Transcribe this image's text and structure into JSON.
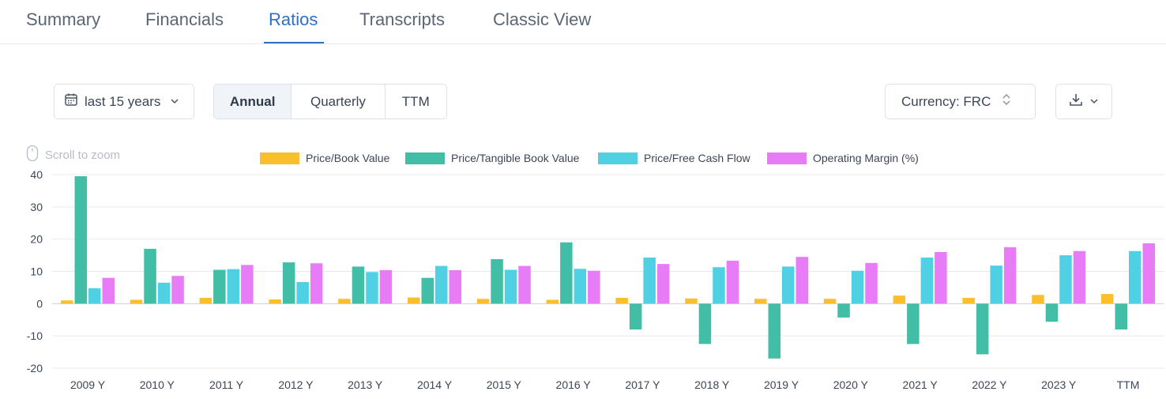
{
  "tabs": [
    {
      "label": "Summary",
      "active": false
    },
    {
      "label": "Financials",
      "active": false
    },
    {
      "label": "Ratios",
      "active": true
    },
    {
      "label": "Transcripts",
      "active": false
    },
    {
      "label": "Classic View",
      "active": false
    }
  ],
  "controls": {
    "period_label": "last 15 years",
    "period_icon": "calendar-icon",
    "frequency_options": [
      "Annual",
      "Quarterly",
      "TTM"
    ],
    "frequency_selected": "Annual",
    "currency_label": "Currency: FRC",
    "download_icon": "download-icon"
  },
  "zoom_hint": "Scroll to zoom",
  "colors": {
    "accent": "#2f6fc6",
    "price_book": "#fbbf2e",
    "price_tangible_book": "#43bea6",
    "price_fcf": "#4fd1e3",
    "operating_margin": "#e87cf6"
  },
  "chart_data": {
    "type": "bar",
    "categories": [
      "2009 Y",
      "2010 Y",
      "2011 Y",
      "2012 Y",
      "2013 Y",
      "2014 Y",
      "2015 Y",
      "2016 Y",
      "2017 Y",
      "2018 Y",
      "2019 Y",
      "2020 Y",
      "2021 Y",
      "2022 Y",
      "2023 Y",
      "TTM"
    ],
    "series": [
      {
        "name": "Price/Book Value",
        "color": "#fbbf2e",
        "values": [
          1.0,
          1.2,
          1.8,
          1.3,
          1.5,
          1.9,
          1.5,
          1.2,
          1.8,
          1.6,
          1.5,
          1.5,
          2.5,
          1.8,
          2.7,
          3.0
        ]
      },
      {
        "name": "Price/Tangible Book Value",
        "color": "#43bea6",
        "values": [
          39.5,
          17.0,
          10.5,
          12.8,
          11.5,
          8.0,
          13.8,
          19.0,
          -8.0,
          -12.5,
          -17.0,
          -4.3,
          -12.5,
          -15.7,
          -5.6,
          -8.0
        ]
      },
      {
        "name": "Price/Free Cash Flow",
        "color": "#4fd1e3",
        "values": [
          4.8,
          6.5,
          10.7,
          6.7,
          9.8,
          11.7,
          10.5,
          10.8,
          14.3,
          11.3,
          11.5,
          10.2,
          14.3,
          11.8,
          15.0,
          16.3
        ]
      },
      {
        "name": "Operating Margin (%)",
        "color": "#e87cf6",
        "values": [
          8.0,
          8.6,
          12.0,
          12.5,
          10.4,
          10.4,
          11.7,
          10.2,
          12.3,
          13.3,
          14.5,
          12.6,
          16.0,
          17.5,
          16.3,
          18.7
        ]
      }
    ],
    "yticks": [
      40,
      30,
      20,
      10,
      0,
      -10,
      -20
    ],
    "ylim": [
      -20,
      40
    ],
    "grid": true,
    "legend_position": "top-center"
  }
}
